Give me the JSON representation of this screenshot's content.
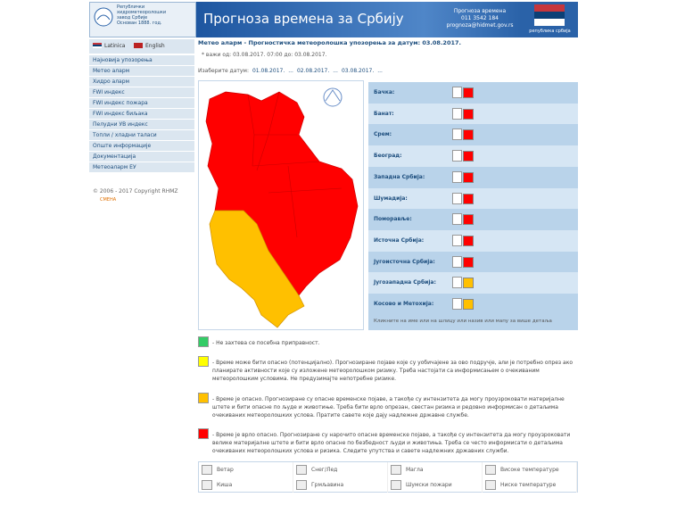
{
  "header": {
    "org": [
      "Републички",
      "хидрометеоролошки",
      "завод Србије",
      "Основан 1888. год."
    ],
    "title": "Прогноза времена за Србију",
    "phone_label": "Прогноза времена",
    "phone": "011 3542 184",
    "email": "prognoza@hidmet.gov.rs",
    "flag_caption": "република србија"
  },
  "languages": [
    "Latinica",
    "English"
  ],
  "menu": [
    "Најновија упозорења",
    "Метео аларм",
    "Хидро аларм",
    "FWI индекс",
    "FWI индекс пожара",
    "FWI индекс биљака",
    "Пелудни УВ индекс",
    "Топли / хладни таласи",
    "Опште информације",
    "Документација",
    "Метеоаларм ЕУ"
  ],
  "copyright": "© 2006 - 2017 Copyright RHMZ",
  "sub_copyright": "СМЕНА",
  "page_title": "Метео аларм - Прогностичка метеоролошка упозорења за датум: 03.08.2017.",
  "validity": "* важи од: 03.08.2017. 07:00 до: 03.08.2017.",
  "date_label": "Изаберите датум:",
  "dates": [
    "01.08.2017.",
    "02.08.2017.",
    "03.08.2017."
  ],
  "date_sep": "...",
  "regions": [
    {
      "name": "Бачка:",
      "color": "#ff0000"
    },
    {
      "name": "Банат:",
      "color": "#ff0000"
    },
    {
      "name": "Срем:",
      "color": "#ff0000"
    },
    {
      "name": "Београд:",
      "color": "#ff0000"
    },
    {
      "name": "Западна Србија:",
      "color": "#ff0000"
    },
    {
      "name": "Шумадија:",
      "color": "#ff0000"
    },
    {
      "name": "Поморавље:",
      "color": "#ff0000"
    },
    {
      "name": "Источна Србија:",
      "color": "#ff0000"
    },
    {
      "name": "Југоисточна Србија:",
      "color": "#ff0000"
    },
    {
      "name": "Југозападна Србија:",
      "color": "#ffc000"
    },
    {
      "name": "Косово и Метохија:",
      "color": "#ffc000"
    }
  ],
  "regions_note": "Кликните на име или на шлицу или назив или мапу за више детаља",
  "legend": [
    {
      "color": "#33cc66",
      "text": "- Не захтева се посебна приправност."
    },
    {
      "color": "#ffff00",
      "text": "- Време може бити опасно (потенцијално). Прогнозиране појаве које су уобичајене за ово подручје, али је потребно опрез ако планирате активности које су изложене метеоролошком ризику. Треба настојати са информисањем о очекиваним метеоролошким условима. Не предузимајте непотребне ризике."
    },
    {
      "color": "#ffc000",
      "text": "- Време је опасно. Прогнозиране су опасне временске појаве, а такође су интензитета да могу проузроковати материјалне штете и бити опасне по људе и животиње. Треба бити врло опрезан, свестан ризика и редовно информисан о детаљима очекиваних метеоролошких услова. Пратите савете које дају надлежне државне службе."
    },
    {
      "color": "#ff0000",
      "text": "- Време је врло опасно. Прогнозиране су нарочито опасне временске појаве, а такође су интензитета да могу проузроковати велике материјалне штете и бити врло опасне по безбедност људи и животиња. Треба се често информисати о детаљима очекиваних метеоролошких услова и ризика. Следите упутства и савете надлежних државних служби."
    }
  ],
  "icons": [
    "Ветар",
    "Снег/Лед",
    "Магла",
    "Високе температуре",
    "Киша",
    "Грмљавина",
    "Шумски пожари",
    "Ниске температуре"
  ]
}
